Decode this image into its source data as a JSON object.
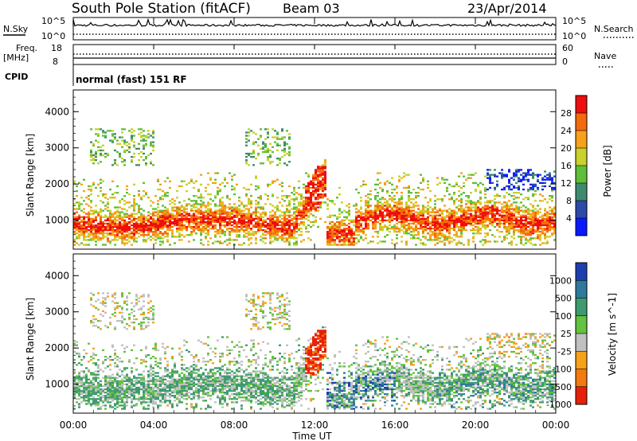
{
  "header": {
    "station": "South Pole Station (fitACF)",
    "beam": "Beam 03",
    "date": "23/Apr/2014"
  },
  "status": {
    "nsky_label": "N.Sky",
    "nsky_ticks": [
      "10^5",
      "10^0"
    ],
    "nsearch_label": "N.Search",
    "freq_label_1": "Freq.",
    "freq_label_2": "[MHz]",
    "freq_ticks": [
      "18",
      "8"
    ],
    "nave_ticks": [
      "60",
      "0"
    ],
    "nave_label": "Nave",
    "cpid_label": "CPID",
    "cpid_value": "normal (fast) 151 RF"
  },
  "x_axis": {
    "ticks": [
      "00:00",
      "04:00",
      "08:00",
      "12:00",
      "16:00",
      "20:00",
      "00:00"
    ],
    "label": "Time UT"
  },
  "chart_data": [
    {
      "type": "heatmap",
      "ylabel": "Slant Range [km]",
      "ylim": [
        200,
        4600
      ],
      "yticks": [
        1000,
        2000,
        3000,
        4000
      ],
      "xlim_hours": [
        0,
        24
      ],
      "colorbar_label": "Power [dB]",
      "colorbar_ticks": [
        "4",
        "8",
        "12",
        "16",
        "20",
        "24",
        "28"
      ],
      "colors": [
        "#0a1aff",
        "#2c4aa8",
        "#3f8a6e",
        "#5fbf3a",
        "#c9d12a",
        "#f7a11a",
        "#f56a0a",
        "#ee0e0e"
      ]
    },
    {
      "type": "heatmap",
      "ylabel": "Slant Range [km]",
      "ylim": [
        200,
        4600
      ],
      "yticks": [
        1000,
        2000,
        3000,
        4000
      ],
      "xlim_hours": [
        0,
        24
      ],
      "colorbar_label": "Velocity [m s^-1]",
      "colorbar_ticks": [
        "1000",
        "500",
        "100",
        "25",
        "-25",
        "-100",
        "-500",
        "-1000"
      ],
      "colors": [
        "#1c3fb0",
        "#2f7a9c",
        "#3f9a70",
        "#63c23f",
        "#c0c0c0",
        "#f7a11a",
        "#f47a10",
        "#e8200a"
      ]
    }
  ]
}
